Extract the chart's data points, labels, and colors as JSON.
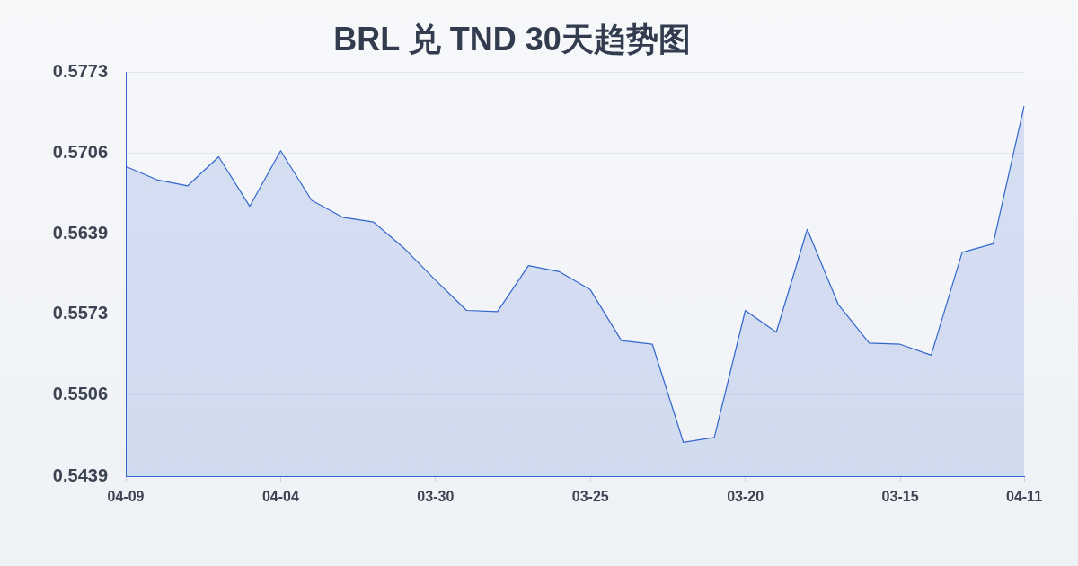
{
  "chart_data": {
    "type": "area",
    "title": "BRL 兑 TND 30天趋势图",
    "categories": [
      "04-09",
      null,
      null,
      null,
      null,
      "04-04",
      null,
      null,
      null,
      null,
      "03-30",
      null,
      null,
      null,
      null,
      "03-25",
      null,
      null,
      null,
      null,
      "03-20",
      null,
      null,
      null,
      null,
      "03-15",
      null,
      null,
      null,
      "04-11"
    ],
    "values": [
      0.5695,
      0.5684,
      0.5679,
      0.5703,
      0.5662,
      0.5708,
      0.5667,
      0.5653,
      0.5649,
      0.5627,
      0.5601,
      0.5576,
      0.5575,
      0.5613,
      0.5608,
      0.5593,
      0.5551,
      0.5548,
      0.5467,
      0.5471,
      0.5576,
      0.5558,
      0.5643,
      0.5581,
      0.5549,
      0.5548,
      0.5539,
      0.5624,
      0.5631,
      0.5745
    ],
    "color": "#3366cc",
    "ylim": [
      0.5439,
      0.5773
    ],
    "yticks": [
      0.5439,
      0.5506,
      0.5573,
      0.5639,
      0.5706,
      0.5773
    ],
    "grid": "y",
    "line_style": "solid"
  }
}
